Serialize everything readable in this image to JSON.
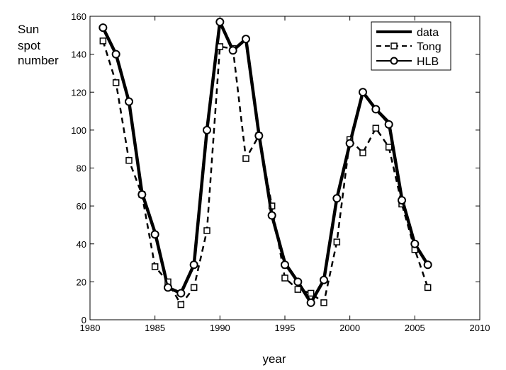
{
  "chart_data": {
    "type": "line",
    "xlabel": "year",
    "ylabel_lines": [
      "Sun",
      "spot",
      "number"
    ],
    "xlim": [
      1980,
      2010
    ],
    "ylim": [
      0,
      160
    ],
    "xticks": [
      1980,
      1985,
      1990,
      1995,
      2000,
      2005,
      2010
    ],
    "yticks": [
      0,
      20,
      40,
      60,
      80,
      100,
      120,
      140,
      160
    ],
    "grid": false,
    "legend_position": "top-right",
    "series": [
      {
        "name": "data",
        "style": "solid-thick",
        "color": "#000000",
        "x": [
          1981,
          1982,
          1983,
          1984,
          1985,
          1986,
          1987,
          1988,
          1989,
          1990,
          1991,
          1992,
          1993,
          1994,
          1995,
          1996,
          1997,
          1998,
          1999,
          2000,
          2001,
          2002,
          2003,
          2004,
          2005,
          2006
        ],
        "y": [
          154,
          140,
          115,
          67,
          46,
          17,
          14,
          29,
          100,
          157,
          142,
          148,
          98,
          55,
          30,
          20,
          9,
          21,
          64,
          93,
          120,
          111,
          104,
          64,
          40,
          29
        ]
      },
      {
        "name": "Tong",
        "style": "dashed-square",
        "color": "#000000",
        "x": [
          1981,
          1982,
          1983,
          1984,
          1985,
          1986,
          1987,
          1988,
          1989,
          1990,
          1991,
          1992,
          1993,
          1994,
          1995,
          1996,
          1997,
          1998,
          1999,
          2000,
          2001,
          2002,
          2003,
          2004,
          2005,
          2006
        ],
        "y": [
          147,
          125,
          84,
          66,
          28,
          20,
          8,
          17,
          47,
          144,
          143,
          85,
          97,
          60,
          22,
          16,
          14,
          9,
          41,
          95,
          88,
          101,
          91,
          61,
          37,
          17
        ]
      },
      {
        "name": "HLB",
        "style": "solid-circle",
        "color": "#000000",
        "x": [
          1981,
          1982,
          1983,
          1984,
          1985,
          1986,
          1987,
          1988,
          1989,
          1990,
          1991,
          1992,
          1993,
          1994,
          1995,
          1996,
          1997,
          1998,
          1999,
          2000,
          2001,
          2002,
          2003,
          2004,
          2005,
          2006
        ],
        "y": [
          154,
          140,
          115,
          66,
          45,
          17,
          14,
          29,
          100,
          157,
          142,
          148,
          97,
          55,
          29,
          20,
          9,
          21,
          64,
          93,
          120,
          111,
          103,
          63,
          40,
          29
        ]
      }
    ]
  }
}
